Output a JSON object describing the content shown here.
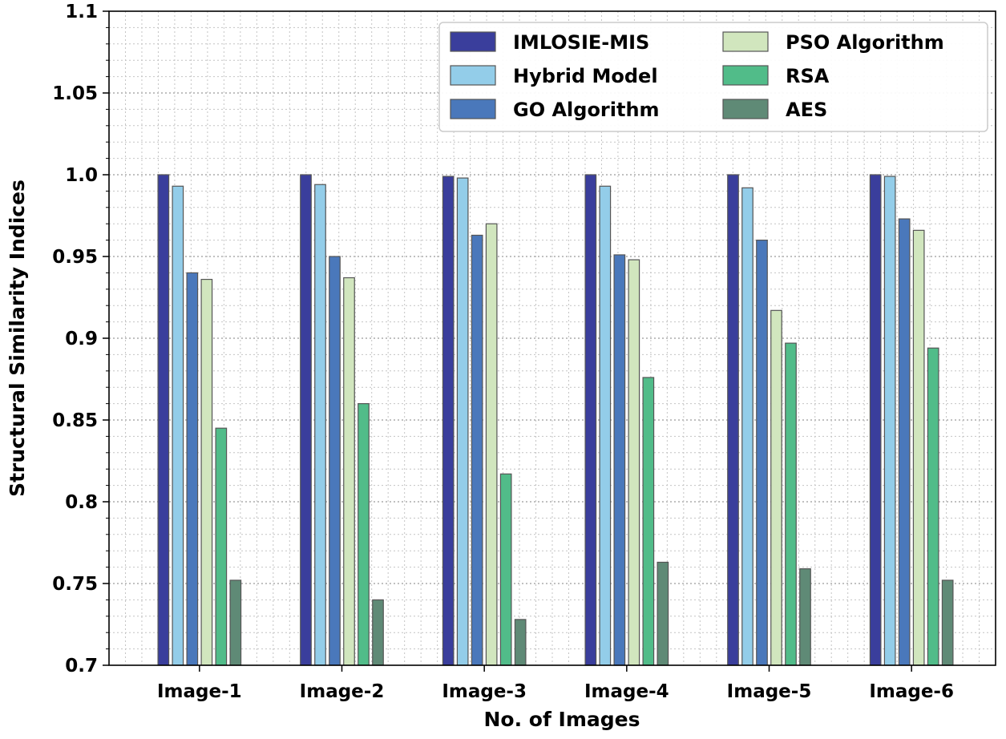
{
  "chart_data": {
    "type": "bar",
    "title": "",
    "xlabel": "No. of Images",
    "ylabel": "Structural Similarity Indices",
    "ylim": [
      0.7,
      1.1
    ],
    "yticks": [
      0.7,
      0.75,
      0.8,
      0.85,
      0.9,
      0.95,
      1.0,
      1.05,
      1.1
    ],
    "ytick_labels": [
      "0.7",
      "0.75",
      "0.8",
      "0.85",
      "0.9",
      "0.95",
      "1.0",
      "1.05",
      "1.1"
    ],
    "grid": "major and minor, dotted",
    "legend_position": "top-right",
    "legend_columns": 2,
    "categories": [
      "Image-1",
      "Image-2",
      "Image-3",
      "Image-4",
      "Image-5",
      "Image-6"
    ],
    "series": [
      {
        "name": "IMLOSIE-MIS",
        "color": "#3a3e9c",
        "values": [
          1.0,
          1.0,
          0.999,
          1.0,
          1.0,
          1.0
        ]
      },
      {
        "name": "Hybrid Model",
        "color": "#93cde9",
        "values": [
          0.993,
          0.994,
          0.998,
          0.993,
          0.992,
          0.999
        ]
      },
      {
        "name": "GO Algorithm",
        "color": "#4a78bb",
        "values": [
          0.94,
          0.95,
          0.963,
          0.951,
          0.96,
          0.973
        ]
      },
      {
        "name": "PSO Algorithm",
        "color": "#d1e6be",
        "values": [
          0.936,
          0.937,
          0.97,
          0.948,
          0.917,
          0.966
        ]
      },
      {
        "name": "RSA",
        "color": "#51bc89",
        "values": [
          0.845,
          0.86,
          0.817,
          0.876,
          0.897,
          0.894
        ]
      },
      {
        "name": "AES",
        "color": "#5f8a76",
        "values": [
          0.752,
          0.74,
          0.728,
          0.763,
          0.759,
          0.752
        ]
      }
    ]
  }
}
